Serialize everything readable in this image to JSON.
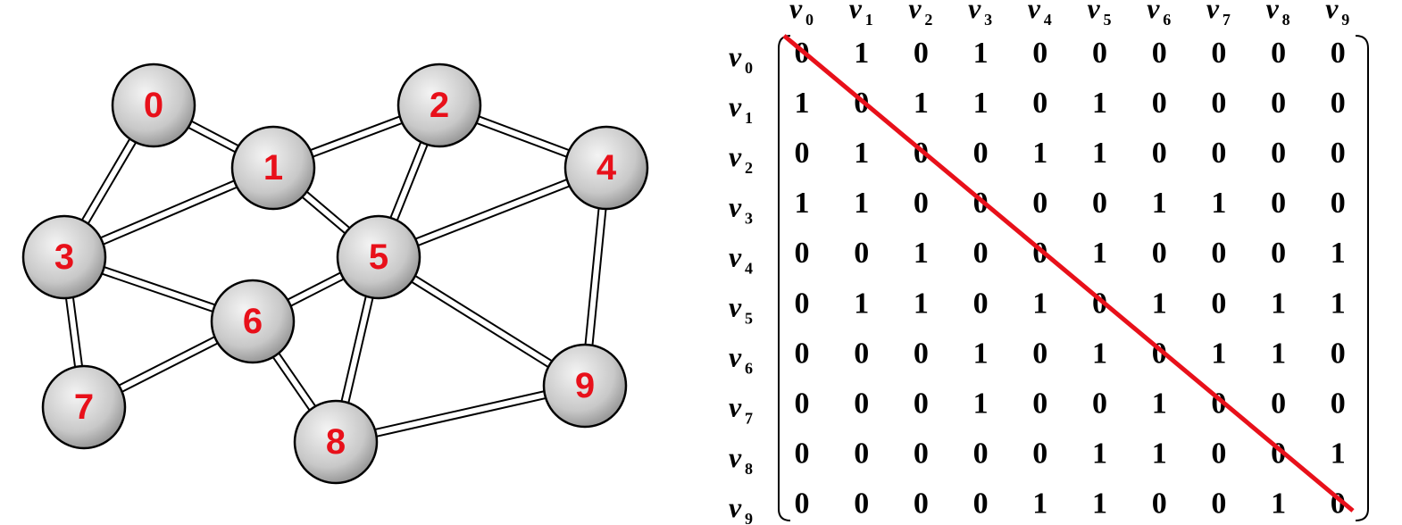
{
  "graph": {
    "nodes": [
      {
        "label": "0"
      },
      {
        "label": "1"
      },
      {
        "label": "2"
      },
      {
        "label": "3"
      },
      {
        "label": "4"
      },
      {
        "label": "5"
      },
      {
        "label": "6"
      },
      {
        "label": "7"
      },
      {
        "label": "8"
      },
      {
        "label": "9"
      }
    ]
  },
  "matrix": {
    "columns": [
      {
        "letter": "v",
        "index": "0"
      },
      {
        "letter": "v",
        "index": "1"
      },
      {
        "letter": "v",
        "index": "2"
      },
      {
        "letter": "v",
        "index": "3"
      },
      {
        "letter": "v",
        "index": "4"
      },
      {
        "letter": "v",
        "index": "5"
      },
      {
        "letter": "v",
        "index": "6"
      },
      {
        "letter": "v",
        "index": "7"
      },
      {
        "letter": "v",
        "index": "8"
      },
      {
        "letter": "v",
        "index": "9"
      }
    ],
    "rows": [
      {
        "letter": "v",
        "index": "0",
        "cells": [
          0,
          1,
          0,
          1,
          0,
          0,
          0,
          0,
          0,
          0
        ]
      },
      {
        "letter": "v",
        "index": "1",
        "cells": [
          1,
          0,
          1,
          1,
          0,
          1,
          0,
          0,
          0,
          0
        ]
      },
      {
        "letter": "v",
        "index": "2",
        "cells": [
          0,
          1,
          0,
          0,
          1,
          1,
          0,
          0,
          0,
          0
        ]
      },
      {
        "letter": "v",
        "index": "3",
        "cells": [
          1,
          1,
          0,
          0,
          0,
          0,
          1,
          1,
          0,
          0
        ]
      },
      {
        "letter": "v",
        "index": "4",
        "cells": [
          0,
          0,
          1,
          0,
          0,
          1,
          0,
          0,
          0,
          1
        ]
      },
      {
        "letter": "v",
        "index": "5",
        "cells": [
          0,
          1,
          1,
          0,
          1,
          0,
          1,
          0,
          1,
          1
        ]
      },
      {
        "letter": "v",
        "index": "6",
        "cells": [
          0,
          0,
          0,
          1,
          0,
          1,
          0,
          1,
          1,
          0
        ]
      },
      {
        "letter": "v",
        "index": "7",
        "cells": [
          0,
          0,
          0,
          1,
          0,
          0,
          1,
          0,
          0,
          0
        ]
      },
      {
        "letter": "v",
        "index": "8",
        "cells": [
          0,
          0,
          0,
          0,
          0,
          1,
          1,
          0,
          0,
          1
        ]
      },
      {
        "letter": "v",
        "index": "9",
        "cells": [
          0,
          0,
          0,
          0,
          1,
          1,
          0,
          0,
          1,
          0
        ]
      }
    ]
  }
}
